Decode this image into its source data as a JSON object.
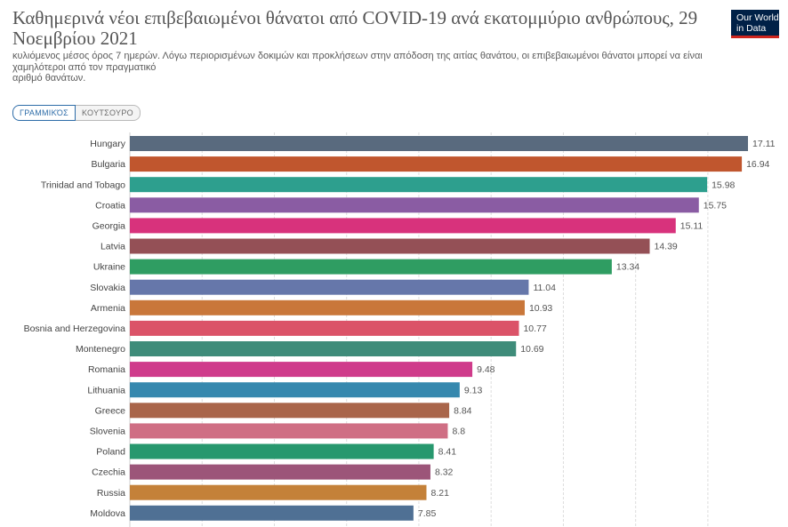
{
  "header": {
    "title": "Καθημερινά νέοι επιβεβαιωμένοι θάνατοι από COVID-19 ανά εκατομμύριο ανθρώπους, 29 Νοεμβρίου 2021",
    "subtitle_line1": "κυλιόμενος μέσος όρος 7 ημερών. Λόγω περιορισμένων δοκιμών και προκλήσεων στην απόδοση της αιτίας θανάτου, οι επιβεβαιωμένοι θάνατοι μπορεί να είναι",
    "subtitle_line2": "χαμηλότεροι από τον πραγματικό",
    "subtitle_line3": "αριθμό θανάτων."
  },
  "logo": {
    "line1": "Our World",
    "line2": "in Data"
  },
  "tabs": [
    {
      "label": "ΓΡΑΜΜΙΚΌΣ",
      "active": true
    },
    {
      "label": "ΚΟΥΤΣΟΥΡΟ",
      "active": false
    }
  ],
  "chart_data": {
    "type": "bar",
    "orientation": "horizontal",
    "title": "Καθημερινά νέοι επιβεβαιωμένοι θάνατοι από COVID-19 ανά εκατομμύριο ανθρώπους, 29 Νοεμβρίου 2021",
    "xlim": [
      0,
      17.11
    ],
    "grid": true,
    "categories": [
      "Hungary",
      "Bulgaria",
      "Trinidad and Tobago",
      "Croatia",
      "Georgia",
      "Latvia",
      "Ukraine",
      "Slovakia",
      "Armenia",
      "Bosnia and Herzegovina",
      "Montenegro",
      "Romania",
      "Lithuania",
      "Greece",
      "Slovenia",
      "Poland",
      "Czechia",
      "Russia",
      "Moldova"
    ],
    "values": [
      17.11,
      16.94,
      15.98,
      15.75,
      15.11,
      14.39,
      13.34,
      11.04,
      10.93,
      10.77,
      10.69,
      9.48,
      9.13,
      8.84,
      8.8,
      8.41,
      8.32,
      8.21,
      7.85
    ],
    "value_labels": [
      "17.11",
      "16.94",
      "15.98",
      "15.75",
      "15.11",
      "14.39",
      "13.34",
      "11.04",
      "10.93",
      "10.77",
      "10.69",
      "9.48",
      "9.13",
      "8.84",
      "8.8",
      "8.41",
      "8.32",
      "8.21",
      "7.85"
    ],
    "colors": [
      "#596a7e",
      "#c0562e",
      "#2d9f8e",
      "#8a5ca3",
      "#d8327c",
      "#945056",
      "#2f9d62",
      "#6677aa",
      "#c9773a",
      "#db5368",
      "#3f8c7a",
      "#cf3b8b",
      "#3688ae",
      "#a9654a",
      "#cf6e84",
      "#27986e",
      "#9c5579",
      "#c48139",
      "#4f7094"
    ]
  }
}
